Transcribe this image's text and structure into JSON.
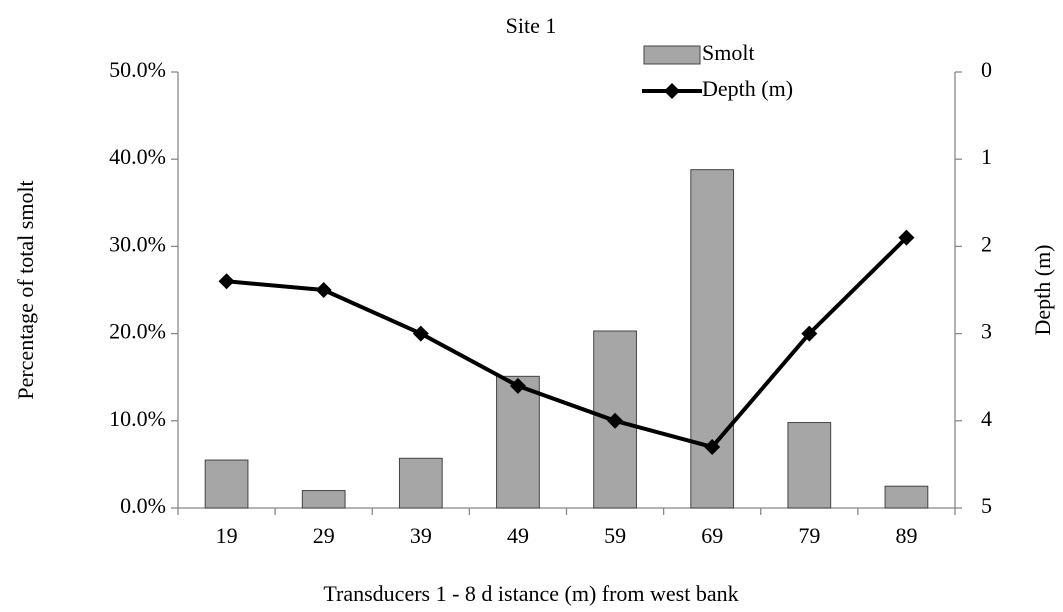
{
  "chart_data": {
    "type": "bar-line",
    "title": "Site 1",
    "x_label": "Transducers 1 - 8 d istance (m) from west bank",
    "y_label": "Percentage of total smolt",
    "y2_label": "Depth (m)",
    "categories": [
      "19",
      "29",
      "39",
      "49",
      "59",
      "69",
      "79",
      "89"
    ],
    "series": [
      {
        "name": "Smolt",
        "type": "bar",
        "color": "#a6a6a6",
        "values": [
          5.5,
          2.0,
          5.7,
          15.1,
          20.3,
          38.8,
          9.8,
          2.5
        ]
      },
      {
        "name": "Depth (m)",
        "type": "line",
        "axis": "y2",
        "color": "#000000",
        "values": [
          2.4,
          2.5,
          3.0,
          3.6,
          4.0,
          4.3,
          3.0,
          1.9
        ]
      }
    ],
    "ylim": [
      0,
      50
    ],
    "yticks": [
      {
        "value": 0,
        "label": "0.0%"
      },
      {
        "value": 10,
        "label": "10.0%"
      },
      {
        "value": 20,
        "label": "20.0%"
      },
      {
        "value": 30,
        "label": "30.0%"
      },
      {
        "value": 40,
        "label": "40.0%"
      },
      {
        "value": 50,
        "label": "50.0%"
      }
    ],
    "y2lim": [
      0,
      5
    ],
    "y2_inverted": true,
    "y2ticks": [
      0,
      1,
      2,
      3,
      4,
      5
    ],
    "grid": false,
    "legend": "top"
  }
}
